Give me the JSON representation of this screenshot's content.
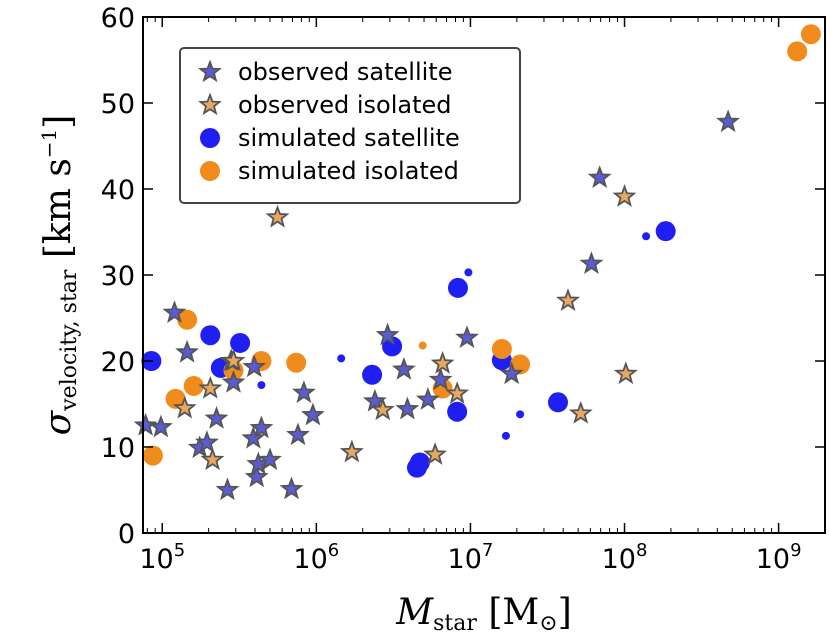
{
  "chart_data": {
    "type": "scatter",
    "title": "",
    "xlabel": "M_star [M_sun]",
    "ylabel": "sigma_velocity,star [km s^-1]",
    "x_scale": "log",
    "xlim": [
      75000,
      2000000000
    ],
    "ylim": [
      0,
      60
    ],
    "x_ticks": [
      {
        "value": 100000,
        "base": "10",
        "exp": "5"
      },
      {
        "value": 1000000,
        "base": "10",
        "exp": "6"
      },
      {
        "value": 10000000,
        "base": "10",
        "exp": "7"
      },
      {
        "value": 100000000,
        "base": "10",
        "exp": "8"
      },
      {
        "value": 1000000000,
        "base": "10",
        "exp": "9"
      }
    ],
    "y_ticks": [
      0,
      10,
      20,
      30,
      40,
      50,
      60
    ],
    "legend_position": "top-left",
    "series": [
      {
        "name": "observed satellite",
        "marker": "star",
        "color": "#5b5bd6",
        "points": [
          [
            78000,
            12.5
          ],
          [
            98000,
            12.3
          ],
          [
            120000,
            25.6
          ],
          [
            145000,
            21.0
          ],
          [
            175000,
            9.9
          ],
          [
            195000,
            10.5
          ],
          [
            225000,
            13.3
          ],
          [
            265000,
            5.0
          ],
          [
            280000,
            20.0
          ],
          [
            290000,
            17.5
          ],
          [
            390000,
            11.0
          ],
          [
            395000,
            19.3
          ],
          [
            410000,
            6.5
          ],
          [
            420000,
            8.0
          ],
          [
            440000,
            12.2
          ],
          [
            500000,
            8.5
          ],
          [
            690000,
            5.1
          ],
          [
            760000,
            11.4
          ],
          [
            830000,
            16.3
          ],
          [
            950000,
            13.7
          ],
          [
            2400000,
            15.3
          ],
          [
            2900000,
            23.0
          ],
          [
            3700000,
            19.0
          ],
          [
            3900000,
            14.4
          ],
          [
            5300000,
            15.5
          ],
          [
            6400000,
            17.8
          ],
          [
            9500000,
            22.7
          ],
          [
            18500000,
            18.5
          ],
          [
            61000000,
            31.3
          ],
          [
            69000000,
            41.3
          ],
          [
            470000000,
            47.8
          ]
        ]
      },
      {
        "name": "observed isolated",
        "marker": "star",
        "color": "#e8a860",
        "points": [
          [
            140000,
            14.5
          ],
          [
            205000,
            16.8
          ],
          [
            212000,
            8.5
          ],
          [
            290000,
            20.0
          ],
          [
            560000,
            36.7
          ],
          [
            1700000,
            9.4
          ],
          [
            2700000,
            14.3
          ],
          [
            5900000,
            9.1
          ],
          [
            6600000,
            19.7
          ],
          [
            8200000,
            16.2
          ],
          [
            43000000,
            27.0
          ],
          [
            52000000,
            13.9
          ],
          [
            100000000,
            39.1
          ],
          [
            102000000,
            18.5
          ]
        ]
      },
      {
        "name": "simulated satellite",
        "marker": "circle",
        "color": "#1f1ff2",
        "points": [
          [
            85000,
            20.0,
            10
          ],
          [
            205000,
            23.0,
            10
          ],
          [
            240000,
            19.2,
            10
          ],
          [
            320000,
            22.1,
            10
          ],
          [
            440000,
            17.2,
            4
          ],
          [
            1450000,
            20.3,
            4
          ],
          [
            2300000,
            18.4,
            10
          ],
          [
            3100000,
            21.7,
            10
          ],
          [
            4500000,
            7.6,
            10
          ],
          [
            4700000,
            8.2,
            10
          ],
          [
            8200000,
            14.1,
            10
          ],
          [
            8300000,
            28.5,
            10
          ],
          [
            9700000,
            30.3,
            4
          ],
          [
            16000000,
            20.1,
            10
          ],
          [
            17000000,
            11.3,
            4
          ],
          [
            21000000,
            13.8,
            4
          ],
          [
            37000000,
            15.2,
            10
          ],
          [
            138000000,
            34.5,
            4
          ],
          [
            185000000,
            35.1,
            10
          ]
        ]
      },
      {
        "name": "simulated isolated",
        "marker": "circle",
        "color": "#f08c1e",
        "points": [
          [
            87000,
            9.0,
            10
          ],
          [
            122000,
            15.6,
            10
          ],
          [
            145000,
            24.8,
            10
          ],
          [
            160000,
            17.1,
            10
          ],
          [
            290000,
            18.9,
            10
          ],
          [
            440000,
            20.0,
            10
          ],
          [
            740000,
            19.8,
            10
          ],
          [
            4900000,
            21.8,
            4
          ],
          [
            6600000,
            16.8,
            10
          ],
          [
            16000000,
            21.4,
            10
          ],
          [
            21000000,
            19.6,
            10
          ],
          [
            1320000000,
            56.0,
            10
          ],
          [
            1620000000,
            58.0,
            10
          ]
        ]
      }
    ]
  }
}
